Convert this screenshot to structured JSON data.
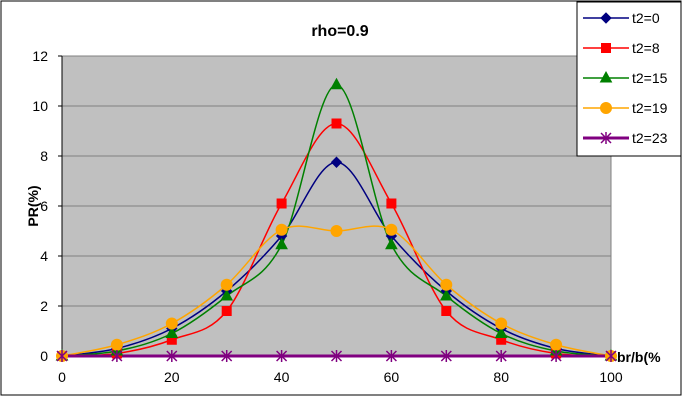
{
  "chart_data": {
    "type": "line",
    "title": "rho=0.9",
    "xlabel": "br/b(%",
    "ylabel": "PR(%)",
    "xlim": [
      0,
      100
    ],
    "ylim": [
      0,
      12
    ],
    "x_ticks": [
      "0",
      "20",
      "40",
      "60",
      "80",
      "100"
    ],
    "y_ticks": [
      "0",
      "2",
      "4",
      "6",
      "8",
      "10",
      "12"
    ],
    "grid": "horizontal",
    "legend_position": "top-right",
    "x": [
      0,
      10,
      20,
      30,
      40,
      50,
      60,
      70,
      80,
      90,
      100
    ],
    "series": [
      {
        "name": "t2=0",
        "marker": "diamond",
        "color": "#000080",
        "values": [
          0,
          0.3,
          1.1,
          2.6,
          4.8,
          7.75,
          4.8,
          2.6,
          1.1,
          0.3,
          0
        ]
      },
      {
        "name": "t2=8",
        "marker": "square",
        "color": "#ff0000",
        "values": [
          0,
          0.1,
          0.65,
          1.8,
          6.1,
          9.3,
          6.1,
          1.8,
          0.65,
          0.1,
          0
        ]
      },
      {
        "name": "t2=15",
        "marker": "triangle",
        "color": "#008000",
        "values": [
          0,
          0.2,
          0.9,
          2.4,
          4.45,
          10.85,
          4.45,
          2.4,
          0.9,
          0.2,
          0
        ]
      },
      {
        "name": "t2=19",
        "marker": "circle",
        "color": "#ffa500",
        "values": [
          0,
          0.45,
          1.3,
          2.85,
          5.05,
          5.0,
          5.05,
          2.85,
          1.3,
          0.45,
          0
        ]
      },
      {
        "name": "t2=23",
        "marker": "star",
        "color": "#800080",
        "values": [
          0,
          0,
          0,
          0,
          0,
          0,
          0,
          0,
          0,
          0,
          0
        ]
      }
    ]
  }
}
